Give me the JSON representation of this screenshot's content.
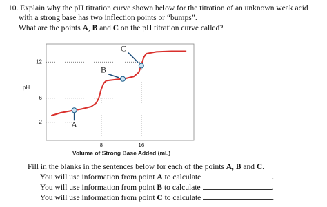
{
  "question": {
    "number": "10.",
    "line1": "Explain why the pH titration curve shown below for the titration of an unknown weak acid",
    "line2": "with a strong base has two inflection points or “bumps”.",
    "line3": [
      "What are the points ",
      "A",
      ", ",
      "B",
      " and ",
      "C",
      " on the pH titration curve called?"
    ]
  },
  "chart_data": {
    "type": "line",
    "ylabel": "pH",
    "xlabel": "Volume of Strong Base Added (mL)",
    "x": [
      -2,
      0,
      2,
      4,
      6,
      7,
      7.5,
      8,
      8.5,
      9,
      11,
      13,
      14.5,
      15.5,
      16,
      16.5,
      17,
      19,
      22,
      25
    ],
    "series": [
      {
        "color": "#d9302c",
        "values": [
          3.1,
          3.6,
          3.9,
          4.2,
          4.6,
          5.2,
          6,
          7.5,
          8.5,
          8.9,
          9.1,
          9.3,
          9.6,
          10.3,
          11.5,
          12.8,
          13.4,
          13.7,
          13.8,
          13.8
        ]
      }
    ],
    "xlim": [
      -3,
      26.5
    ],
    "ylim": [
      -1,
      15
    ],
    "xticks": [
      8,
      16
    ],
    "yticks": [
      2,
      6,
      12
    ],
    "annotations": [
      {
        "label": "A",
        "x": 2.6,
        "y": 4.0
      },
      {
        "label": "B",
        "x": 12.3,
        "y": 9.2
      },
      {
        "label": "C",
        "x": 16,
        "y": 11.4
      }
    ]
  },
  "fill": {
    "intro": [
      "Fill in the blanks in the sentences below for each of the points ",
      "A",
      ", ",
      "B",
      " and ",
      "C",
      "."
    ],
    "sentences": [
      [
        "You will use information from point ",
        "A",
        " to calculate",
        "."
      ],
      [
        "You will use information from point ",
        "B",
        " to calculate",
        "."
      ],
      [
        "You will use information from point ",
        "C",
        " to calculate",
        "."
      ]
    ]
  }
}
